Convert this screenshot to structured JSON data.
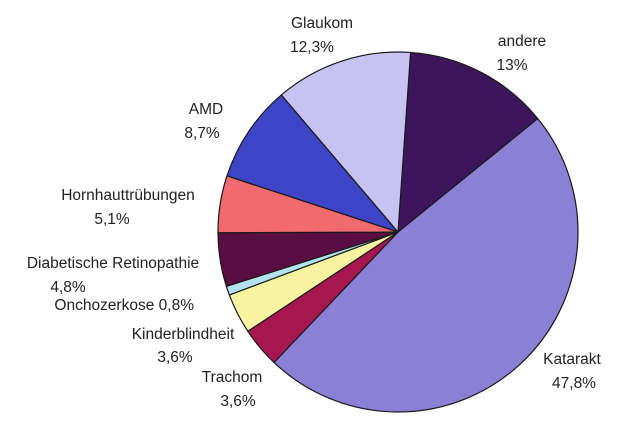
{
  "chart_data": {
    "type": "pie",
    "title": "",
    "start_angle_deg": 4,
    "direction": "clockwise",
    "slices": [
      {
        "name": "andere",
        "value": 13.0,
        "value_label": "13%",
        "color": "#3d155c"
      },
      {
        "name": "Katarakt",
        "value": 47.8,
        "value_label": "47,8%",
        "color": "#8b7fd6"
      },
      {
        "name": "Trachom",
        "value": 3.6,
        "value_label": "3,6%",
        "color": "#a6164f"
      },
      {
        "name": "Kinderblindheit",
        "value": 3.6,
        "value_label": "3,6%",
        "color": "#f7f3a0"
      },
      {
        "name": "Onchozerkose",
        "value": 0.8,
        "value_label": "0,8%",
        "color": "#b4e2ef"
      },
      {
        "name": "Diabetische Retinopathie",
        "value": 4.8,
        "value_label": "4,8%",
        "color": "#5a0d42"
      },
      {
        "name": "Hornhauttrübungen",
        "value": 5.1,
        "value_label": "5,1%",
        "color": "#f06a6e"
      },
      {
        "name": "AMD",
        "value": 8.7,
        "value_label": "8,7%",
        "color": "#3e44c6"
      },
      {
        "name": "Glaukom",
        "value": 12.3,
        "value_label": "12,3%",
        "color": "#c6c3f3"
      }
    ]
  }
}
